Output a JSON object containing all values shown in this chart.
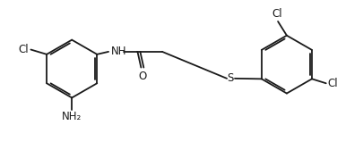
{
  "bg_color": "#ffffff",
  "line_color": "#1a1a1a",
  "text_color": "#1a1a1a",
  "figsize": [
    4.05,
    1.59
  ],
  "dpi": 100,
  "labels": {
    "Cl_left": "Cl",
    "NH": "NH",
    "O": "O",
    "S": "S",
    "NH2": "NH₂",
    "Cl_top": "Cl",
    "Cl_right": "Cl"
  },
  "font_size": 8.5,
  "line_width": 1.3
}
